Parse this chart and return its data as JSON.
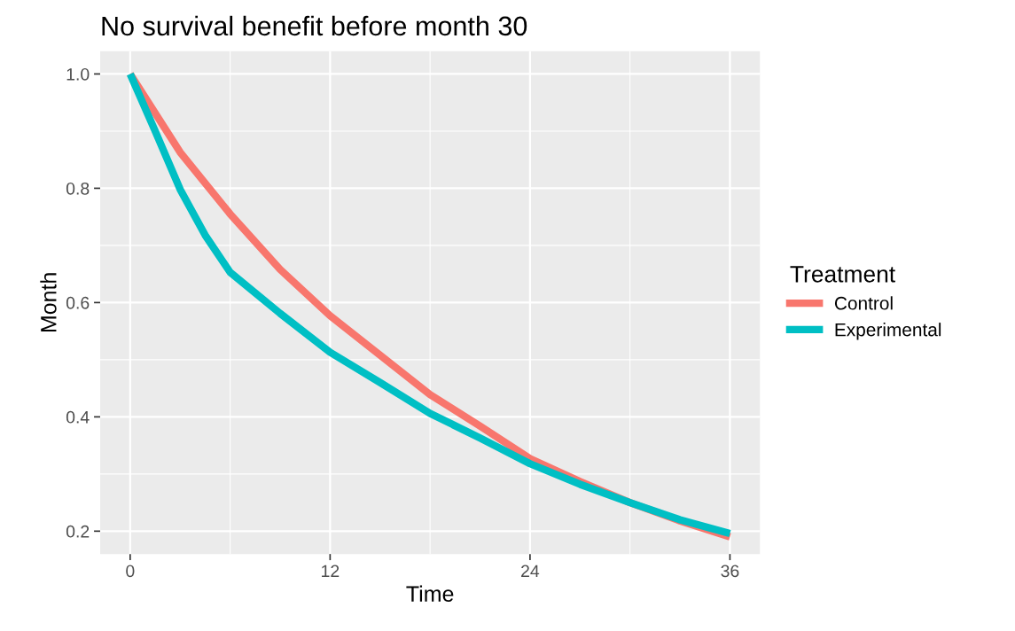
{
  "chart_data": {
    "type": "line",
    "title": "No survival benefit before month 30",
    "xlabel": "Time",
    "ylabel": "Month",
    "legend_title": "Treatment",
    "x": [
      0,
      1.5,
      3,
      4.5,
      6,
      9,
      12,
      15,
      18,
      21,
      24,
      27,
      30,
      33,
      36
    ],
    "series": [
      {
        "name": "Control",
        "color": "#f8766d",
        "x": [
          0,
          3,
          6,
          9,
          12,
          15,
          18,
          21,
          24,
          27,
          30,
          33,
          36
        ],
        "values": [
          1.0,
          0.863,
          0.755,
          0.658,
          0.577,
          0.508,
          0.439,
          0.384,
          0.327,
          0.287,
          0.25,
          0.218,
          0.19
        ]
      },
      {
        "name": "Experimental",
        "color": "#00bfc4",
        "values": [
          1.0,
          0.9,
          0.798,
          0.718,
          0.653,
          0.581,
          0.513,
          0.46,
          0.406,
          0.363,
          0.318,
          0.282,
          0.25,
          0.22,
          0.196
        ]
      }
    ],
    "xlim": [
      -1.8,
      37.8
    ],
    "xticks": [
      0,
      12,
      24,
      36
    ],
    "ylim": [
      0.16,
      1.04
    ],
    "yticks": [
      {
        "value": 0.2,
        "label": "0.2"
      },
      {
        "value": 0.4,
        "label": "0.4"
      },
      {
        "value": 0.6,
        "label": "0.6"
      },
      {
        "value": 0.8,
        "label": "0.8"
      },
      {
        "value": 1.0,
        "label": "1.0"
      }
    ],
    "grid": true,
    "legend": "right",
    "line_style": "solid"
  }
}
